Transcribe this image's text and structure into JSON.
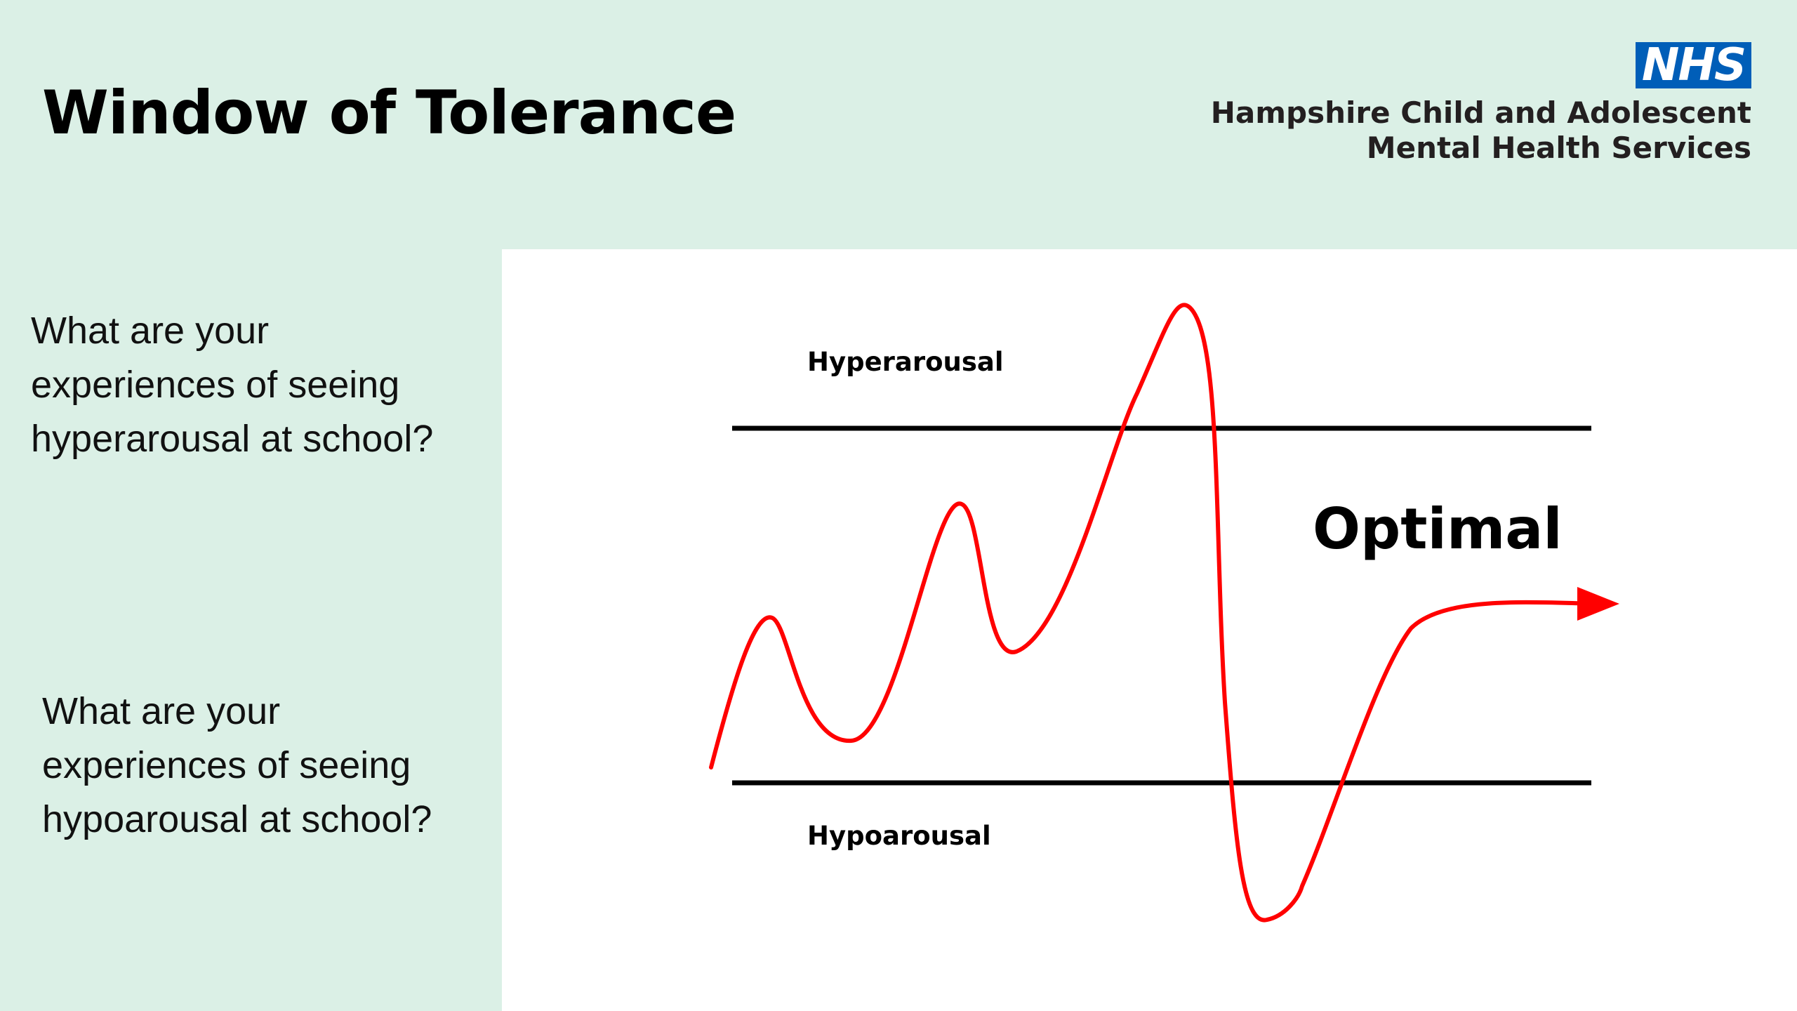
{
  "slide": {
    "title": "Window of Tolerance"
  },
  "branding": {
    "logo_text": "NHS",
    "org_line1": "Hampshire Child and Adolescent",
    "org_line2": "Mental Health Services",
    "logo_color": "#005eb8"
  },
  "questions": {
    "hyper": {
      "line1": "What are your",
      "line2": "experiences of seeing",
      "line3": "hyperarousal at school?"
    },
    "hypo": {
      "line1": "What are your",
      "line2": "experiences of seeing",
      "line3": "hypoarousal at school?"
    }
  },
  "diagram": {
    "upper_label": "Hyperarousal",
    "middle_label": "Optimal",
    "lower_label": "Hypoarousal",
    "curve_color": "#ff0000",
    "line_color": "#000000",
    "background_color": "#dbf0e6",
    "panel_color": "#ffffff"
  }
}
